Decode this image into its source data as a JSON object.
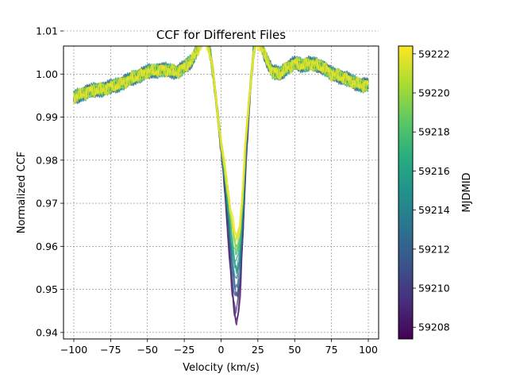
{
  "chart_data": {
    "type": "line",
    "title": "CCF for Different Files",
    "xlabel": "Velocity (km/s)",
    "ylabel": "Normalized CCF",
    "xlim": [
      -107,
      107
    ],
    "ylim": [
      0.9385,
      1.0065
    ],
    "xticks": [
      -100,
      -75,
      -50,
      -25,
      0,
      25,
      50,
      75,
      100
    ],
    "yticks": [
      0.94,
      0.95,
      0.96,
      0.97,
      0.98,
      0.99,
      1.0,
      1.01
    ],
    "xtick_labels": [
      "−100",
      "−75",
      "−50",
      "−25",
      "0",
      "25",
      "50",
      "75",
      "100"
    ],
    "ytick_labels": [
      "0.94",
      "0.95",
      "0.96",
      "0.97",
      "0.98",
      "0.99",
      "1.00",
      "1.01"
    ],
    "grid": true,
    "colorbar": {
      "label": "MJDMID",
      "colormap": "viridis",
      "range": [
        59207.4,
        59222.4
      ],
      "ticks": [
        59208,
        59210,
        59212,
        59214,
        59216,
        59218,
        59220,
        59222
      ],
      "tick_labels": [
        "59208",
        "59210",
        "59212",
        "59214",
        "59216",
        "59218",
        "59220",
        "59222"
      ]
    },
    "curve_shape": {
      "x": [
        -100,
        -90,
        -80,
        -70,
        -60,
        -50,
        -40,
        -30,
        -25,
        -20,
        -15,
        -12,
        -10,
        -7,
        -5,
        -3,
        0,
        3,
        5,
        7,
        9,
        10,
        11,
        13,
        15,
        17,
        20,
        22,
        24,
        27,
        30,
        35,
        40,
        45,
        50,
        55,
        60,
        65,
        70,
        75,
        80,
        85,
        90,
        95,
        100
      ],
      "y": [
        0.9945,
        0.996,
        0.9965,
        0.9975,
        0.999,
        1.0005,
        1.001,
        1.0005,
        1.0015,
        1.003,
        1.0065,
        1.0085,
        1.008,
        1.004,
        0.999,
        0.993,
        0.984,
        0.977,
        0.972,
        0.967,
        0.963,
        0.962,
        0.962,
        0.965,
        0.974,
        0.986,
        0.998,
        1.004,
        1.008,
        1.0065,
        1.004,
        1.0005,
        1.0,
        1.0015,
        1.0025,
        1.002,
        1.0025,
        1.002,
        1.0015,
        1.0,
        0.9995,
        0.999,
        0.998,
        0.9975,
        0.9975
      ]
    },
    "series": [
      {
        "mjd": 59207.6,
        "min": 0.9425,
        "peak_right": 1.0095,
        "peak_left": 1.0105
      },
      {
        "mjd": 59208.5,
        "min": 0.9435,
        "peak_right": 1.0095,
        "peak_left": 1.011
      },
      {
        "mjd": 59209.5,
        "min": 0.9455,
        "peak_right": 1.0098,
        "peak_left": 1.012
      },
      {
        "mjd": 59210.5,
        "min": 0.9475,
        "peak_right": 1.01,
        "peak_left": 1.013
      },
      {
        "mjd": 59211.5,
        "min": 0.9495,
        "peak_right": 1.0095,
        "peak_left": 1.011
      },
      {
        "mjd": 59212.5,
        "min": 0.951,
        "peak_right": 1.0092,
        "peak_left": 1.01
      },
      {
        "mjd": 59213.5,
        "min": 0.9525,
        "peak_right": 1.009,
        "peak_left": 1.0095
      },
      {
        "mjd": 59214.5,
        "min": 0.954,
        "peak_right": 1.0095,
        "peak_left": 1.01
      },
      {
        "mjd": 59215.5,
        "min": 0.9555,
        "peak_right": 1.01,
        "peak_left": 1.0105
      },
      {
        "mjd": 59216.5,
        "min": 0.957,
        "peak_right": 1.01,
        "peak_left": 1.0095
      },
      {
        "mjd": 59217.5,
        "min": 0.958,
        "peak_right": 1.0095,
        "peak_left": 1.0095
      },
      {
        "mjd": 59218.5,
        "min": 0.9595,
        "peak_right": 1.009,
        "peak_left": 1.009
      },
      {
        "mjd": 59219.5,
        "min": 0.9605,
        "peak_right": 1.0085,
        "peak_left": 1.0085
      },
      {
        "mjd": 59220.5,
        "min": 0.9615,
        "peak_right": 1.0082,
        "peak_left": 1.0082
      },
      {
        "mjd": 59221.5,
        "min": 0.962,
        "peak_right": 1.008,
        "peak_left": 1.008
      },
      {
        "mjd": 59222.2,
        "min": 0.9625,
        "peak_right": 1.0078,
        "peak_left": 1.0078
      }
    ]
  }
}
